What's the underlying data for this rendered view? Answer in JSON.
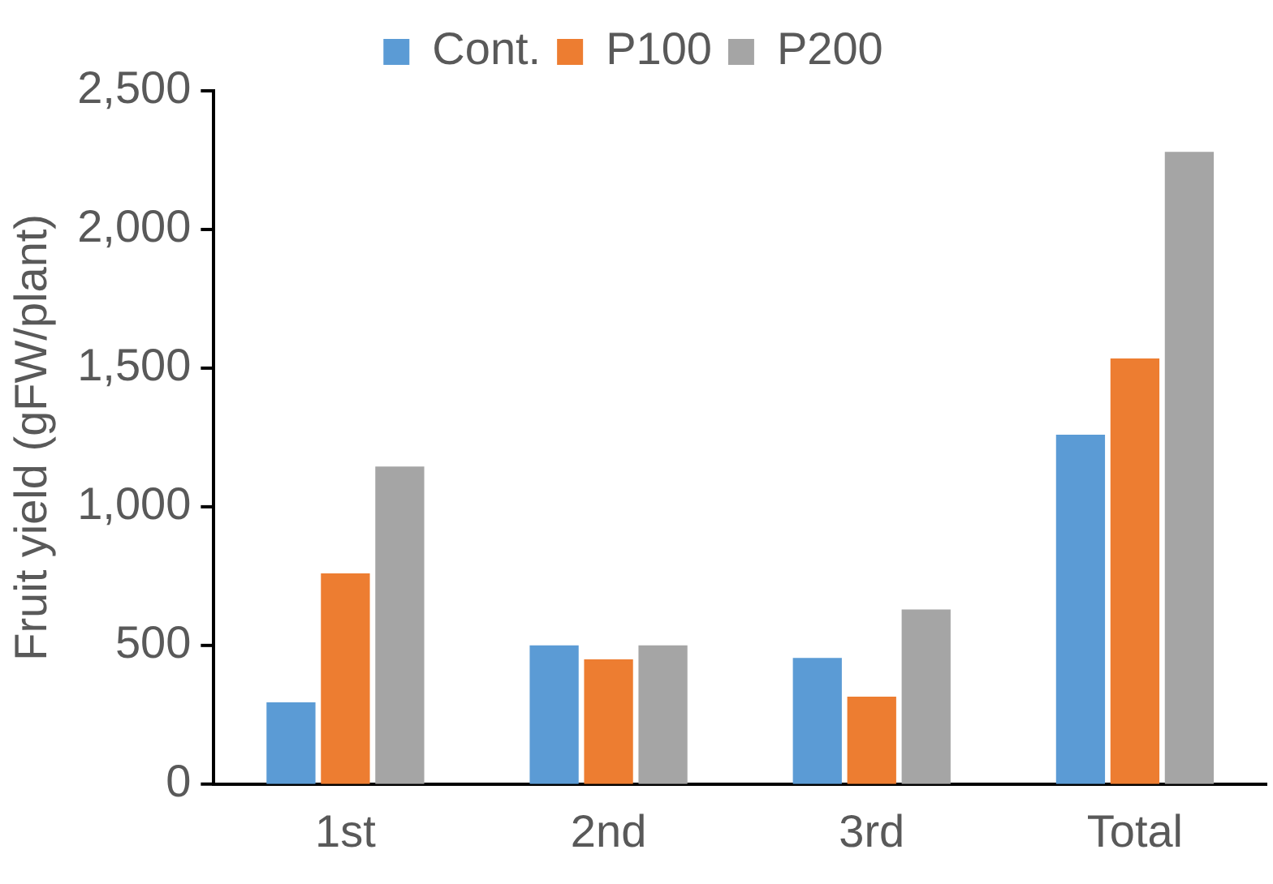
{
  "chart_data": {
    "type": "bar",
    "ylabel": "Fruit yield (gFW/plant)",
    "categories": [
      "1st",
      "2nd",
      "3rd",
      "Total"
    ],
    "series": [
      {
        "name": "Cont.",
        "color": "#5b9bd5",
        "values": [
          295,
          500,
          455,
          1260
        ]
      },
      {
        "name": "P100",
        "color": "#ed7d31",
        "values": [
          760,
          450,
          315,
          1535
        ]
      },
      {
        "name": "P200",
        "color": "#a5a5a5",
        "values": [
          1145,
          500,
          630,
          2280
        ]
      }
    ],
    "ylim": [
      0,
      2500
    ],
    "yticks": [
      {
        "value": 0,
        "label": "0"
      },
      {
        "value": 500,
        "label": "500"
      },
      {
        "value": 1000,
        "label": "1,000"
      },
      {
        "value": 1500,
        "label": "1,500"
      },
      {
        "value": 2000,
        "label": "2,000"
      },
      {
        "value": 2500,
        "label": "2,500"
      }
    ],
    "grid": false,
    "legend": "top"
  }
}
